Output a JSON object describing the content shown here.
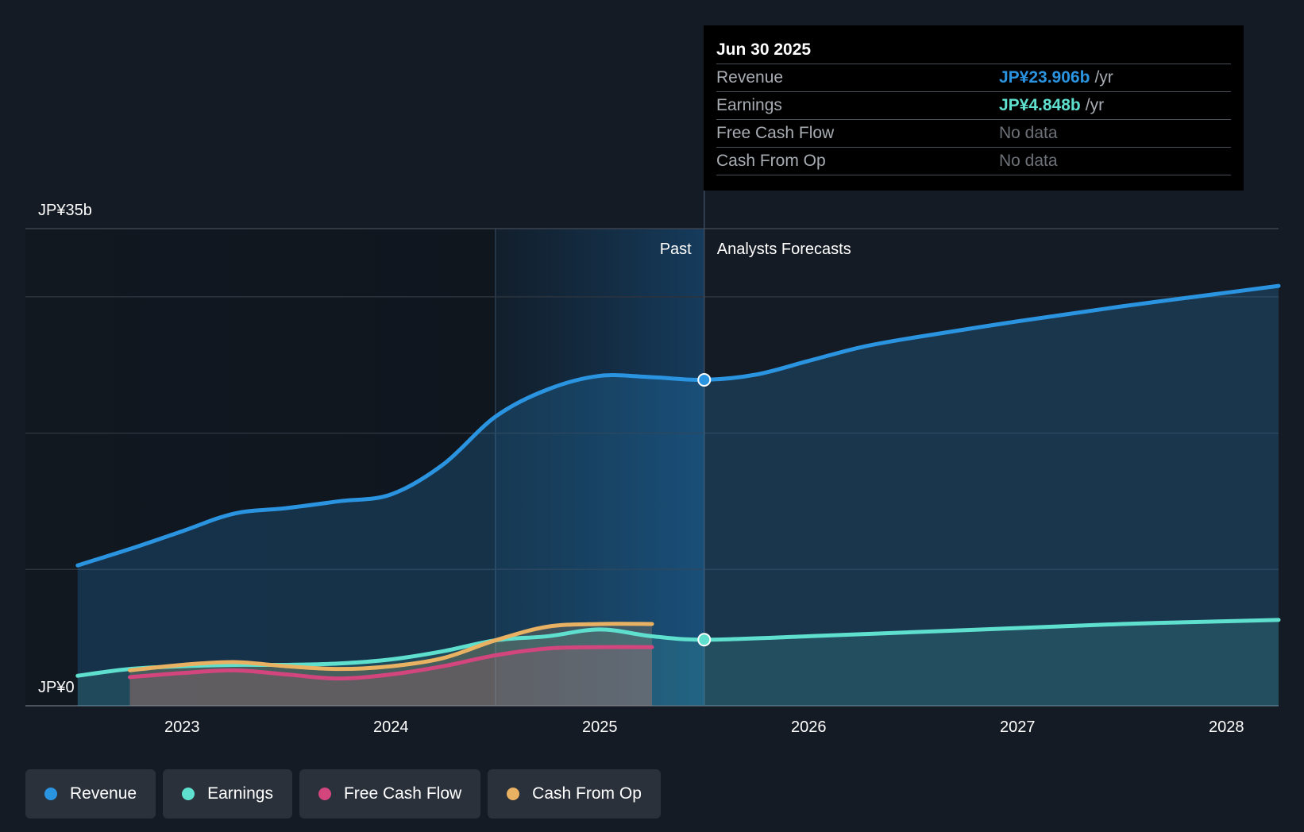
{
  "chart_data": {
    "type": "area",
    "currency": "JPY",
    "y_axis": {
      "top_label": "JP¥35b",
      "bottom_label": "JP¥0",
      "ylim": [
        0,
        35
      ],
      "unit": "billion JPY"
    },
    "x_axis": {
      "tick_labels": [
        "2023",
        "2024",
        "2025",
        "2026",
        "2027",
        "2028"
      ],
      "ticks": [
        2023,
        2024,
        2025,
        2026,
        2027,
        2028
      ],
      "xlim": [
        2022.25,
        2028.25
      ]
    },
    "regions": {
      "past_label": "Past",
      "forecast_label": "Analysts Forecasts",
      "split_x": 2025.5,
      "highlight_start_x": 2024.5
    },
    "series": [
      {
        "name": "Revenue",
        "color": "#2a94e1",
        "points": [
          [
            2022.5,
            10.3
          ],
          [
            2022.75,
            11.5
          ],
          [
            2023.0,
            12.8
          ],
          [
            2023.25,
            14.1
          ],
          [
            2023.5,
            14.5
          ],
          [
            2023.75,
            15.0
          ],
          [
            2024.0,
            15.5
          ],
          [
            2024.25,
            17.7
          ],
          [
            2024.5,
            21.2
          ],
          [
            2024.75,
            23.2
          ],
          [
            2025.0,
            24.2
          ],
          [
            2025.25,
            24.1
          ],
          [
            2025.5,
            23.906
          ],
          [
            2025.75,
            24.3
          ],
          [
            2026.0,
            25.3
          ],
          [
            2026.25,
            26.3
          ],
          [
            2026.5,
            27.0
          ],
          [
            2027.0,
            28.2
          ],
          [
            2027.5,
            29.3
          ],
          [
            2028.0,
            30.3
          ],
          [
            2028.25,
            30.8
          ]
        ]
      },
      {
        "name": "Earnings",
        "color": "#5fe0cf",
        "points": [
          [
            2022.5,
            2.2
          ],
          [
            2022.75,
            2.7
          ],
          [
            2023.0,
            2.9
          ],
          [
            2023.25,
            3.0
          ],
          [
            2023.5,
            3.0
          ],
          [
            2023.75,
            3.1
          ],
          [
            2024.0,
            3.4
          ],
          [
            2024.25,
            4.0
          ],
          [
            2024.5,
            4.8
          ],
          [
            2024.75,
            5.1
          ],
          [
            2025.0,
            5.6
          ],
          [
            2025.25,
            5.1
          ],
          [
            2025.5,
            4.848
          ],
          [
            2026.0,
            5.1
          ],
          [
            2026.5,
            5.4
          ],
          [
            2027.0,
            5.7
          ],
          [
            2027.5,
            6.0
          ],
          [
            2028.0,
            6.2
          ],
          [
            2028.25,
            6.3
          ]
        ]
      },
      {
        "name": "Free Cash Flow",
        "color": "#d2457d",
        "points": [
          [
            2022.75,
            2.1
          ],
          [
            2023.0,
            2.4
          ],
          [
            2023.25,
            2.6
          ],
          [
            2023.5,
            2.3
          ],
          [
            2023.75,
            2.0
          ],
          [
            2024.0,
            2.3
          ],
          [
            2024.25,
            2.9
          ],
          [
            2024.5,
            3.7
          ],
          [
            2024.75,
            4.2
          ],
          [
            2025.0,
            4.3
          ],
          [
            2025.25,
            4.3
          ]
        ]
      },
      {
        "name": "Cash From Op",
        "color": "#e9b162",
        "points": [
          [
            2022.75,
            2.6
          ],
          [
            2023.0,
            3.0
          ],
          [
            2023.25,
            3.2
          ],
          [
            2023.5,
            2.9
          ],
          [
            2023.75,
            2.7
          ],
          [
            2024.0,
            2.9
          ],
          [
            2024.25,
            3.5
          ],
          [
            2024.5,
            4.8
          ],
          [
            2024.75,
            5.8
          ],
          [
            2025.0,
            6.0
          ],
          [
            2025.25,
            6.0
          ]
        ]
      }
    ]
  },
  "tooltip": {
    "date": "Jun 30 2025",
    "rows": [
      {
        "label": "Revenue",
        "value": "JP¥23.906b",
        "unit": "/yr",
        "color": "#2a94e1"
      },
      {
        "label": "Earnings",
        "value": "JP¥4.848b",
        "unit": "/yr",
        "color": "#5fe0cf"
      },
      {
        "label": "Free Cash Flow",
        "value": "No data",
        "unit": "",
        "color": "#6d7178"
      },
      {
        "label": "Cash From Op",
        "value": "No data",
        "unit": "",
        "color": "#6d7178"
      }
    ]
  },
  "legend": [
    {
      "label": "Revenue",
      "color": "#2a94e1"
    },
    {
      "label": "Earnings",
      "color": "#5fe0cf"
    },
    {
      "label": "Free Cash Flow",
      "color": "#d2457d"
    },
    {
      "label": "Cash From Op",
      "color": "#e9b162"
    }
  ]
}
